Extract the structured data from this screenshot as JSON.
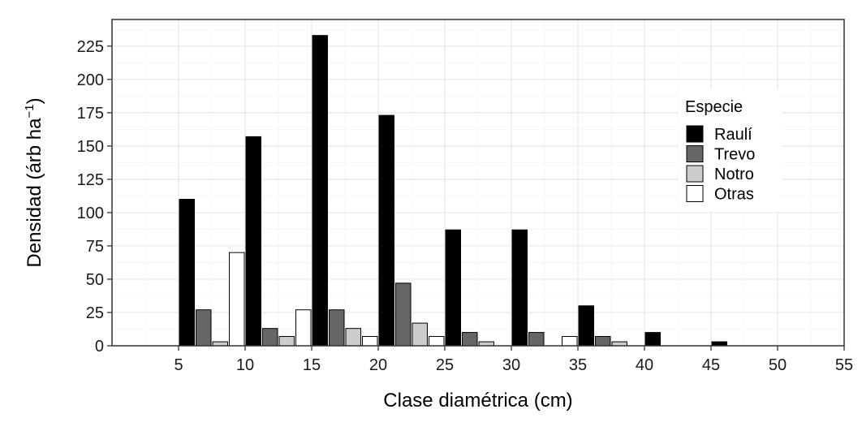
{
  "chart_data": {
    "type": "bar",
    "xlabel": "Clase diamétrica (cm)",
    "ylabel": "Densidad (árb ha",
    "ylabel_sup": "−1",
    "ylabel_close": ")",
    "xlim": [
      0,
      55
    ],
    "ylim": [
      0,
      245
    ],
    "xticks": [
      5,
      10,
      15,
      20,
      25,
      30,
      35,
      40,
      45,
      50,
      55
    ],
    "yticks": [
      0,
      25,
      50,
      75,
      100,
      125,
      150,
      175,
      200,
      225
    ],
    "categories": [
      5,
      10,
      15,
      20,
      25,
      30,
      35,
      40,
      45
    ],
    "grid": true,
    "legend": {
      "title": "Especie",
      "position": "right"
    },
    "series": [
      {
        "name": "Raulí",
        "color": "#000000",
        "values": [
          110,
          157,
          233,
          173,
          87,
          87,
          30,
          10,
          3
        ]
      },
      {
        "name": "Trevo",
        "color": "#666666",
        "values": [
          27,
          13,
          27,
          47,
          10,
          10,
          7,
          0,
          0
        ]
      },
      {
        "name": "Notro",
        "color": "#cccccc",
        "values": [
          3,
          7,
          13,
          17,
          3,
          0,
          3,
          0,
          0
        ]
      },
      {
        "name": "Otras",
        "color": "#ffffff",
        "values": [
          70,
          27,
          7,
          7,
          0,
          7,
          0,
          0,
          0
        ]
      }
    ]
  }
}
